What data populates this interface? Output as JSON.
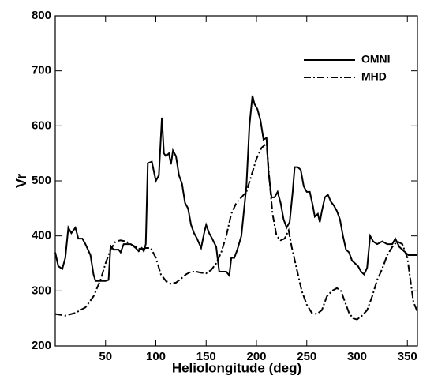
{
  "chart_data": {
    "type": "line",
    "x_label": "Heliolongitude (deg)",
    "y_label": "Vr",
    "xlim": [
      0,
      360
    ],
    "xticks": [
      50,
      100,
      150,
      200,
      250,
      300,
      350
    ],
    "ylim": [
      200,
      800
    ],
    "yticks": [
      200,
      300,
      400,
      500,
      600,
      700,
      800
    ],
    "legend": "upper right",
    "series": [
      {
        "name": "OMNI",
        "color": "#000000",
        "style": "solid",
        "x": [
          0,
          3,
          7,
          10,
          13,
          16,
          20,
          23,
          27,
          30,
          35,
          38,
          40,
          45,
          50,
          53,
          55,
          58,
          63,
          65,
          68,
          72,
          75,
          80,
          83,
          86,
          88,
          90,
          92,
          96,
          100,
          103,
          106,
          108,
          110,
          113,
          115,
          117,
          120,
          123,
          126,
          129,
          132,
          135,
          138,
          141,
          145,
          148,
          150,
          153,
          156,
          160,
          163,
          166,
          170,
          173,
          175,
          178,
          181,
          185,
          190,
          193,
          196,
          198,
          201,
          204,
          207,
          210,
          212,
          215,
          218,
          221,
          224,
          227,
          230,
          233,
          236,
          238,
          241,
          244,
          247,
          250,
          253,
          256,
          258,
          261,
          263,
          265,
          268,
          271,
          274,
          277,
          280,
          283,
          286,
          289,
          292,
          295,
          298,
          301,
          304,
          307,
          310,
          313,
          316,
          320,
          325,
          330,
          335,
          338,
          342,
          345,
          348,
          351,
          355,
          360
        ],
        "values": [
          370,
          345,
          340,
          360,
          415,
          405,
          415,
          395,
          395,
          385,
          365,
          330,
          318,
          318,
          318,
          320,
          382,
          375,
          375,
          370,
          385,
          385,
          385,
          378,
          372,
          378,
          372,
          385,
          532,
          535,
          500,
          510,
          615,
          550,
          545,
          550,
          530,
          555,
          545,
          510,
          495,
          460,
          450,
          420,
          405,
          395,
          378,
          405,
          420,
          405,
          395,
          380,
          335,
          335,
          335,
          328,
          360,
          360,
          375,
          400,
          490,
          600,
          655,
          640,
          630,
          610,
          575,
          578,
          515,
          470,
          470,
          480,
          460,
          430,
          415,
          425,
          480,
          525,
          525,
          520,
          490,
          480,
          480,
          455,
          435,
          440,
          425,
          445,
          470,
          475,
          462,
          455,
          445,
          430,
          400,
          375,
          370,
          355,
          350,
          345,
          335,
          330,
          342,
          400,
          390,
          385,
          390,
          385,
          385,
          395,
          380,
          375,
          370,
          365,
          365,
          365
        ]
      },
      {
        "name": "MHD",
        "color": "#000000",
        "style": "dashdot",
        "x": [
          0,
          10,
          20,
          30,
          38,
          45,
          50,
          55,
          60,
          65,
          70,
          80,
          85,
          90,
          95,
          100,
          105,
          110,
          115,
          120,
          125,
          130,
          135,
          140,
          145,
          150,
          155,
          160,
          165,
          170,
          175,
          180,
          185,
          190,
          195,
          200,
          205,
          210,
          213,
          216,
          220,
          224,
          228,
          232,
          235,
          240,
          245,
          250,
          255,
          260,
          265,
          270,
          275,
          280,
          284,
          288,
          292,
          296,
          300,
          305,
          310,
          315,
          320,
          325,
          330,
          335,
          340,
          345,
          350,
          353,
          356,
          360
        ],
        "values": [
          258,
          255,
          260,
          270,
          290,
          320,
          350,
          375,
          390,
          392,
          390,
          380,
          375,
          378,
          378,
          360,
          330,
          318,
          313,
          315,
          322,
          330,
          335,
          335,
          333,
          332,
          338,
          350,
          370,
          400,
          440,
          460,
          470,
          480,
          510,
          540,
          560,
          568,
          500,
          440,
          400,
          392,
          395,
          410,
          380,
          340,
          300,
          275,
          260,
          258,
          265,
          290,
          300,
          305,
          300,
          280,
          260,
          250,
          248,
          255,
          265,
          290,
          320,
          340,
          365,
          380,
          390,
          385,
          360,
          320,
          280,
          262
        ]
      }
    ]
  }
}
